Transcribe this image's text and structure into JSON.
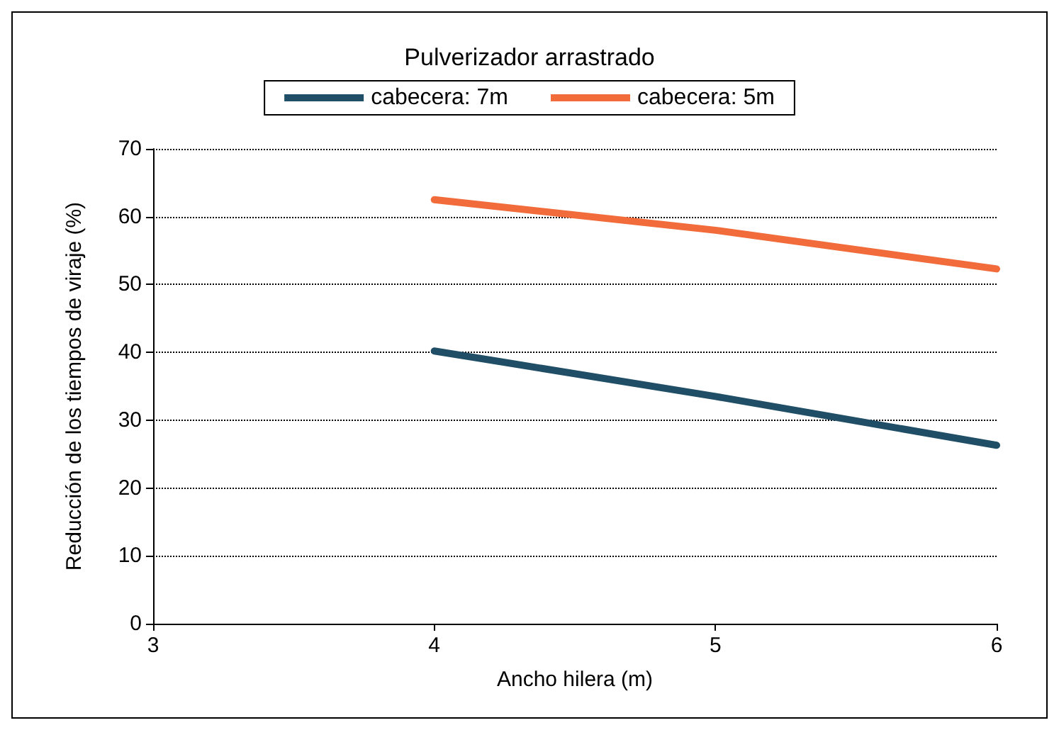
{
  "chart_data": {
    "type": "line",
    "title": "Pulverizador arrastrado",
    "xlabel": "Ancho hilera (m)",
    "ylabel": "Reducción de los tiempos de viraje (%)",
    "x": [
      4,
      5,
      6
    ],
    "series": [
      {
        "name": "cabecera: 7m",
        "color": "#1f4e66",
        "values": [
          40.2,
          33.5,
          26.3
        ]
      },
      {
        "name": "cabecera: 5m",
        "color": "#f26b3a",
        "values": [
          62.5,
          58,
          52.3
        ]
      }
    ],
    "xlim": [
      3,
      6
    ],
    "xticks": [
      3,
      4,
      5,
      6
    ],
    "ylim": [
      0,
      70
    ],
    "yticks": [
      0,
      10,
      20,
      30,
      40,
      50,
      60,
      70
    ],
    "grid": "y",
    "legend": "top",
    "marker": "none",
    "line_style": "solid"
  }
}
